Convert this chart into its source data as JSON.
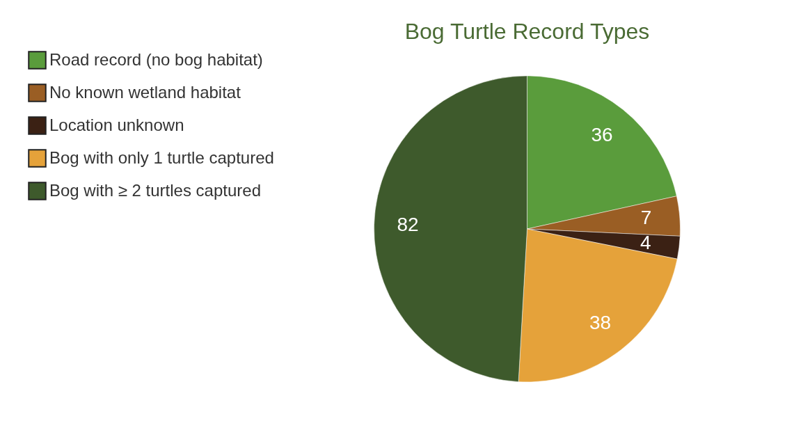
{
  "chart_data": {
    "type": "pie",
    "title": "Bog Turtle Record Types",
    "categories": [
      "Road record (no bog habitat)",
      "No known wetland habitat",
      "Location unknown",
      "Bog with only 1 turtle captured",
      "Bog with ≥ 2 turtles captured"
    ],
    "values": [
      36,
      7,
      4,
      38,
      82
    ],
    "colors": [
      "#5a9c3c",
      "#9a5e24",
      "#3b2114",
      "#e5a23a",
      "#3e5a2c"
    ],
    "data_labels": true,
    "legend": "left"
  }
}
